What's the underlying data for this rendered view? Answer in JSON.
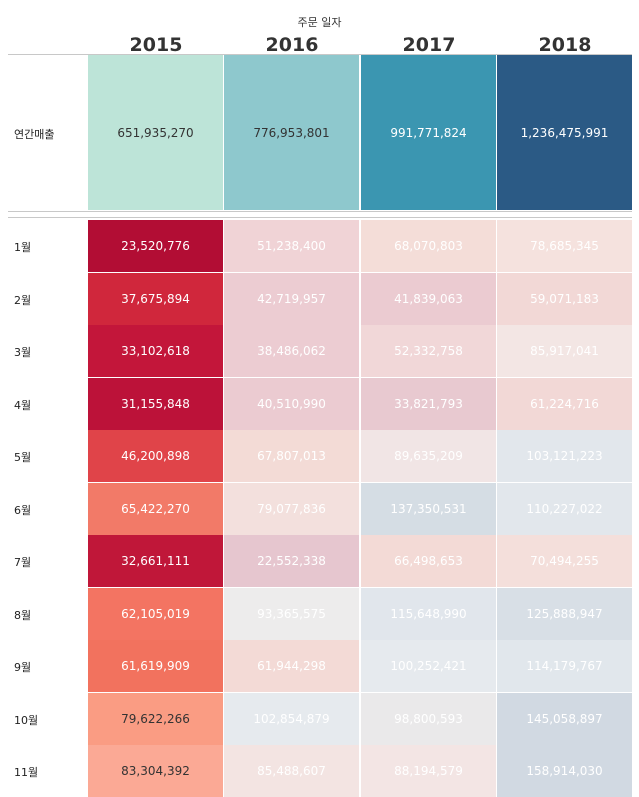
{
  "header": {
    "title": "주문 일자"
  },
  "years": [
    "2015",
    "2016",
    "2017",
    "2018"
  ],
  "colors": {
    "annual_dark_text": "#333333",
    "annual_light_text": "#ffffff"
  },
  "chart_data": [
    {
      "type": "heatmap",
      "title": "",
      "xlabel": "주문 일자",
      "categories": [
        "2015",
        "2016",
        "2017",
        "2018"
      ],
      "rows": [
        "연간매출"
      ],
      "values": [
        [
          651935270,
          776953801,
          991771824,
          1236475991
        ]
      ],
      "labels": [
        [
          "651,935,270",
          "776,953,801",
          "991,771,824",
          "1,236,475,991"
        ]
      ],
      "colors": [
        [
          "#bde4d8",
          "#8ec8cd",
          "#3b96b1",
          "#2b5a85"
        ]
      ]
    },
    {
      "type": "heatmap",
      "title": "",
      "categories": [
        "2015",
        "2016",
        "2017",
        "2018"
      ],
      "rows": [
        "1월",
        "2월",
        "3월",
        "4월",
        "5월",
        "6월",
        "7월",
        "8월",
        "9월",
        "10월",
        "11월"
      ],
      "values": [
        [
          23520776,
          51238400,
          68070803,
          78685345
        ],
        [
          37675894,
          42719957,
          41839063,
          59071183
        ],
        [
          33102618,
          38486062,
          52332758,
          85917041
        ],
        [
          31155848,
          40510990,
          33821793,
          61224716
        ],
        [
          46200898,
          67807013,
          89635209,
          103121223
        ],
        [
          65422270,
          79077836,
          137350531,
          110227022
        ],
        [
          32661111,
          22552338,
          66498653,
          70494255
        ],
        [
          62105019,
          93365575,
          115648990,
          125888947
        ],
        [
          61619909,
          61944298,
          100252421,
          114179767
        ],
        [
          79622266,
          102854879,
          98800593,
          145058897
        ],
        [
          83304392,
          85488607,
          88194579,
          158914030
        ]
      ],
      "labels": [
        [
          "23,520,776",
          "51,238,400",
          "68,070,803",
          "78,685,345"
        ],
        [
          "37,675,894",
          "42,719,957",
          "41,839,063",
          "59,071,183"
        ],
        [
          "33,102,618",
          "38,486,062",
          "52,332,758",
          "85,917,041"
        ],
        [
          "31,155,848",
          "40,510,990",
          "33,821,793",
          "61,224,716"
        ],
        [
          "46,200,898",
          "67,807,013",
          "89,635,209",
          "103,121,223"
        ],
        [
          "65,422,270",
          "79,077,836",
          "137,350,531",
          "110,227,022"
        ],
        [
          "32,661,111",
          "22,552,338",
          "66,498,653",
          "70,494,255"
        ],
        [
          "62,105,019",
          "93,365,575",
          "115,648,990",
          "125,888,947"
        ],
        [
          "61,619,909",
          "61,944,298",
          "100,252,421",
          "114,179,767"
        ],
        [
          "79,622,266",
          "102,854,879",
          "98,800,593",
          "145,058,897"
        ],
        [
          "83,304,392",
          "85,488,607",
          "88,194,579",
          "158,914,030"
        ]
      ],
      "colors": [
        [
          "#b20d34",
          "#f0d3d6",
          "#f4ddd8",
          "#f5e2de"
        ],
        [
          "#d0273c",
          "#ecccd2",
          "#ebcbd1",
          "#f2d8d6"
        ],
        [
          "#c3163a",
          "#ecccd2",
          "#f1d7d8",
          "#f3e6e4"
        ],
        [
          "#bc1239",
          "#ebcbd1",
          "#e8c9d0",
          "#f2d8d6"
        ],
        [
          "#e04449",
          "#f3dbd6",
          "#f1e5e5",
          "#e2e7ec"
        ],
        [
          "#f27a68",
          "#f3e0dd",
          "#d5dde4",
          "#e2e7ec"
        ],
        [
          "#c01739",
          "#e6c6cf",
          "#f3dad6",
          "#f4dfdb"
        ],
        [
          "#f37462",
          "#edecec",
          "#e1e6ec",
          "#d8dfe6"
        ],
        [
          "#f2725e",
          "#f3dad6",
          "#e6eaee",
          "#e1e7ec"
        ],
        [
          "#fa9c83",
          "#e6eaee",
          "#eae9ea",
          "#d1d9e2"
        ],
        [
          "#fba995",
          "#f3e4e2",
          "#f3e5e4",
          "#d1d9e2"
        ]
      ]
    }
  ]
}
